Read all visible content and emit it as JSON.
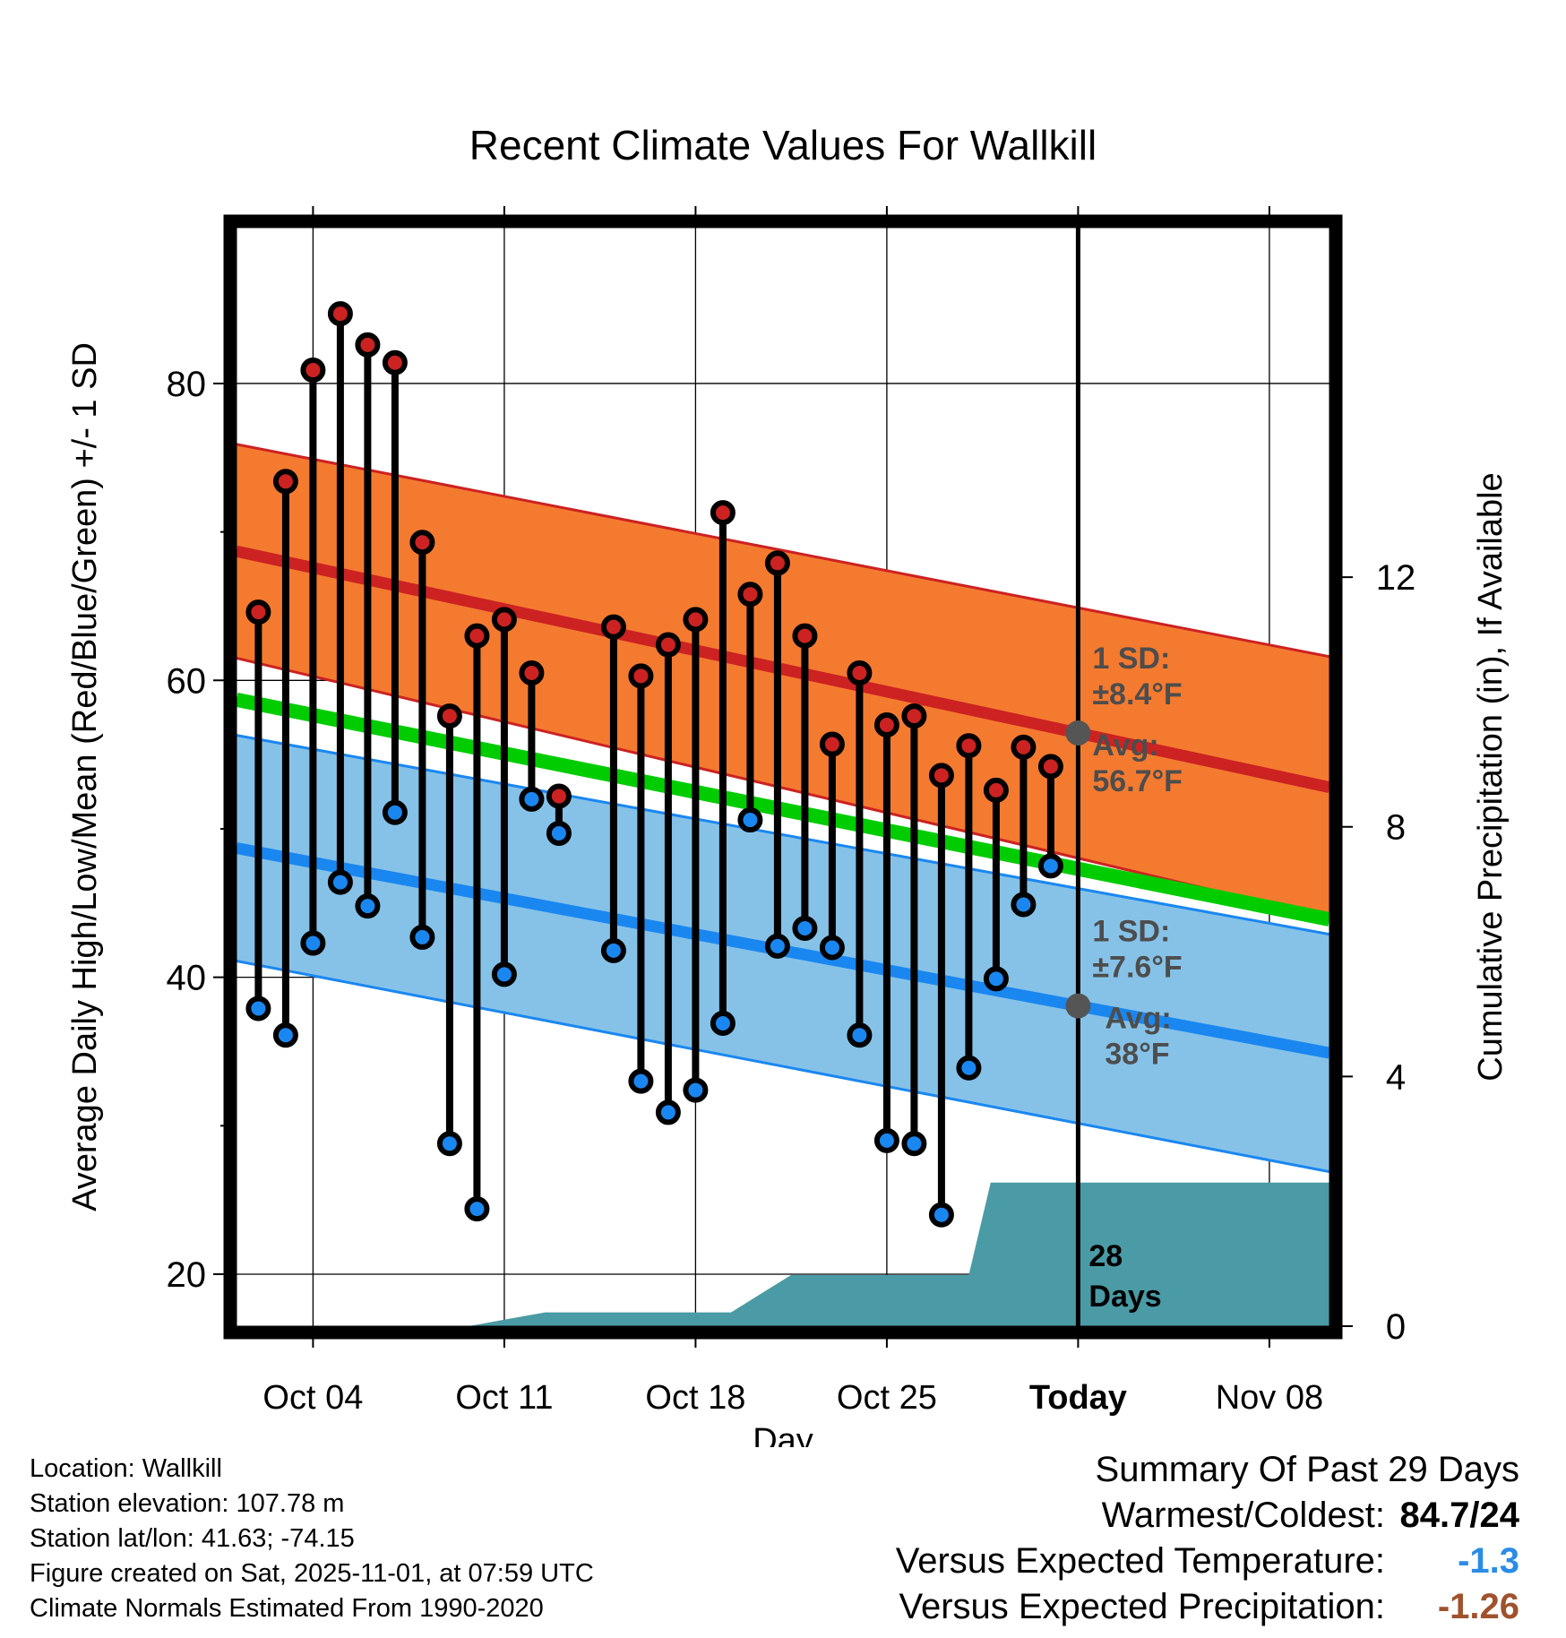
{
  "chart_data": {
    "type": "line",
    "title": "Recent Climate Values For Wallkill",
    "xlabel": "Day",
    "ylabel": "Average Daily High/Low/Mean (Red/Blue/Green) +/- 1 SD",
    "y2label": "Cumulative Precipitation (in), If Available",
    "x_day_range": [
      -2.8,
      37.2
    ],
    "ylim": [
      16.5,
      90.5
    ],
    "y2lim": [
      0,
      17.6
    ],
    "y_ticks": [
      20,
      40,
      60,
      80
    ],
    "y_minor_ticks": [
      30,
      50,
      70
    ],
    "y2_ticks": [
      0,
      4,
      8,
      12
    ],
    "x_ticks": [
      {
        "day": 0,
        "label": "Oct 04"
      },
      {
        "day": 7,
        "label": "Oct 11"
      },
      {
        "day": 14,
        "label": "Oct 18"
      },
      {
        "day": 21,
        "label": "Oct 25"
      },
      {
        "day": 28,
        "label": "Today"
      },
      {
        "day": 35,
        "label": "Nov 08"
      }
    ],
    "today_day": 28,
    "normal_high": {
      "start": 68.7,
      "end": 52.8,
      "sd_start": 7.2,
      "sd_end": 8.8
    },
    "normal_low": {
      "start": 48.7,
      "end": 34.9,
      "sd_start": 7.6,
      "sd_end": 8.0
    },
    "normal_mean": {
      "start": 58.7,
      "end": 43.9
    },
    "daily_days": [
      -2,
      -1,
      0,
      1,
      2,
      3,
      4,
      5,
      6,
      7,
      8,
      9,
      11,
      12,
      13,
      14,
      15,
      16,
      17,
      18,
      19,
      20,
      21,
      22,
      23,
      24,
      25,
      26,
      27
    ],
    "daily_high": [
      64.6,
      73.4,
      80.9,
      84.7,
      82.6,
      81.4,
      69.3,
      57.6,
      63.0,
      64.1,
      60.5,
      52.2,
      63.6,
      60.3,
      62.4,
      64.1,
      71.3,
      65.8,
      67.9,
      63.0,
      55.7,
      60.5,
      57.0,
      57.6,
      53.6,
      55.6,
      52.6,
      55.5,
      54.2
    ],
    "daily_low": [
      37.9,
      36.1,
      42.3,
      46.4,
      44.8,
      51.1,
      42.7,
      28.8,
      24.4,
      40.2,
      52.0,
      49.7,
      41.8,
      33.0,
      30.9,
      32.4,
      36.9,
      50.6,
      42.1,
      43.3,
      42.0,
      36.1,
      29.0,
      28.8,
      24.0,
      33.9,
      39.9,
      44.9,
      47.5
    ],
    "precip_cumulative": [
      [
        -2.8,
        0
      ],
      [
        5.7,
        0
      ],
      [
        7.2,
        0.12
      ],
      [
        8.5,
        0.22
      ],
      [
        14,
        0.22
      ],
      [
        15.3,
        0.22
      ],
      [
        16.5,
        0.55
      ],
      [
        17.5,
        0.82
      ],
      [
        22,
        0.82
      ],
      [
        24,
        0.82
      ],
      [
        24.8,
        2.3
      ],
      [
        37.2,
        2.3
      ]
    ],
    "annotations": {
      "high_sd_line1": "1 SD:",
      "high_sd_line2": "±8.4°F",
      "high_avg_line1": "Avg:",
      "high_avg_line2": "56.7°F",
      "low_sd_line1": "1 SD:",
      "low_sd_line2": "±7.6°F",
      "low_avg_line1": "Avg:",
      "low_avg_line2": "38°F",
      "days_line1": "28",
      "days_line2": "Days"
    }
  },
  "colors": {
    "high_band": "#f47a30",
    "high_line": "#cc2222",
    "low_band": "#86c2e8",
    "low_line": "#1a87f0",
    "mean_line": "#00cc00",
    "precip_fill": "#4a9ba5",
    "high_point": "#cc2222",
    "low_point": "#1a87f0",
    "annotation_text": "#4d4d4d",
    "temp_delta": "#2b8ce6",
    "precip_delta": "#a0522d"
  },
  "info": {
    "location": "Location: Wallkill",
    "elevation": "Station elevation: 107.78 m",
    "latlon": "Station lat/lon: 41.63; -74.15",
    "created": "Figure created on Sat, 2025-11-01, at 07:59 UTC",
    "normals": "Climate Normals Estimated From 1990-2020"
  },
  "summary": {
    "title": "Summary Of Past 29 Days",
    "warmest_label": "Warmest/Coldest:",
    "warmest_value": "84.7/24",
    "temp_label": "Versus Expected Temperature:",
    "temp_value": "-1.3",
    "precip_label": "Versus Expected Precipitation:",
    "precip_value": "-1.26"
  }
}
